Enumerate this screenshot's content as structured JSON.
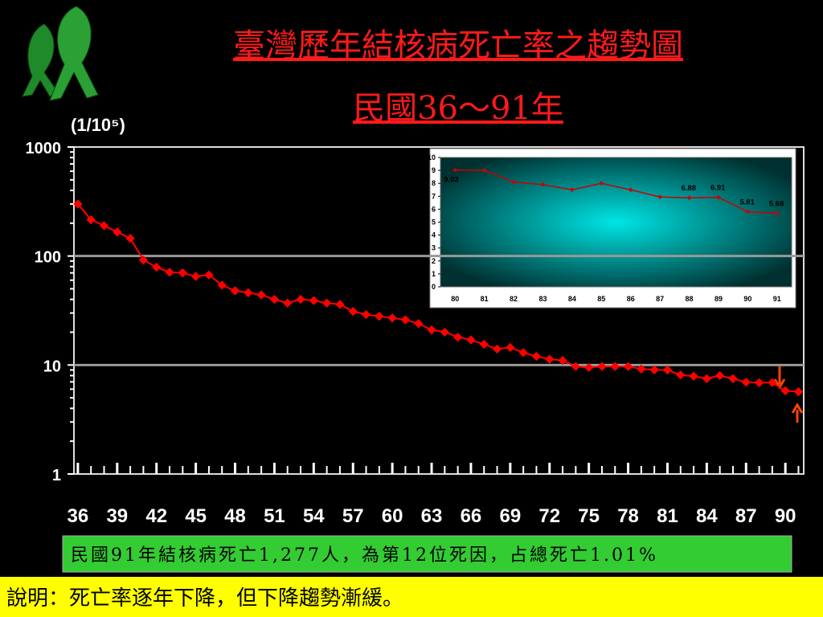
{
  "title": "臺灣歷年結核病死亡率之趨勢圖",
  "subtitle": "民國36～91年",
  "chart_data": [
    {
      "type": "line",
      "y_unit": "(1/10⁵)",
      "log_scale": true,
      "x": [
        36,
        37,
        38,
        39,
        40,
        41,
        42,
        43,
        44,
        45,
        46,
        47,
        48,
        49,
        50,
        51,
        52,
        53,
        54,
        55,
        56,
        57,
        58,
        59,
        60,
        61,
        62,
        63,
        64,
        65,
        66,
        67,
        68,
        69,
        70,
        71,
        72,
        73,
        74,
        75,
        76,
        77,
        78,
        79,
        80,
        81,
        82,
        83,
        84,
        85,
        86,
        87,
        88,
        89,
        90,
        91
      ],
      "series": [
        {
          "name": "死亡率",
          "color": "#ff0000",
          "values": [
            300,
            215,
            190,
            166,
            145,
            92,
            79,
            71,
            70,
            65,
            67,
            54,
            48,
            46,
            44,
            40,
            37,
            40,
            39,
            37,
            36,
            31,
            29,
            28,
            27,
            26,
            24,
            21,
            20,
            18,
            17,
            15.5,
            14,
            14.5,
            13,
            12,
            11.3,
            11,
            9.7,
            9.5,
            9.7,
            9.7,
            9.7,
            9.2,
            9.03,
            9.0,
            8.1,
            7.9,
            7.5,
            8.0,
            7.5,
            6.95,
            6.88,
            6.91,
            5.81,
            5.68
          ]
        }
      ],
      "xlim": [
        35.7,
        91.4
      ],
      "xticks": [
        36,
        39,
        42,
        45,
        48,
        51,
        54,
        57,
        60,
        63,
        66,
        69,
        72,
        75,
        78,
        81,
        84,
        87,
        90
      ],
      "ylim": [
        1,
        1000
      ],
      "yticks": [
        1,
        10,
        100,
        1000
      ],
      "grid": true
    },
    {
      "type": "line",
      "categories": [
        "80",
        "81",
        "82",
        "83",
        "84",
        "85",
        "86",
        "87",
        "88",
        "89",
        "90",
        "91"
      ],
      "series": [
        {
          "name": "死亡率",
          "color": "#cc0000",
          "values": [
            9.03,
            9.0,
            8.1,
            7.9,
            7.5,
            8.0,
            7.5,
            6.95,
            6.88,
            6.91,
            5.81,
            5.68
          ],
          "value_labels": [
            "9.03",
            null,
            null,
            null,
            null,
            null,
            null,
            null,
            "6.88",
            "6.91",
            "5.81",
            "5.68"
          ]
        }
      ],
      "ylim": [
        0,
        10
      ],
      "yticks": [
        0,
        1,
        2,
        3,
        4,
        5,
        6,
        7,
        8,
        9,
        10
      ]
    }
  ],
  "note": "民國91年結核病死亡1,277人，為第12位死因，占總死亡1.01%",
  "footer": "說明：死亡率逐年下降，但下降趨勢漸緩。"
}
